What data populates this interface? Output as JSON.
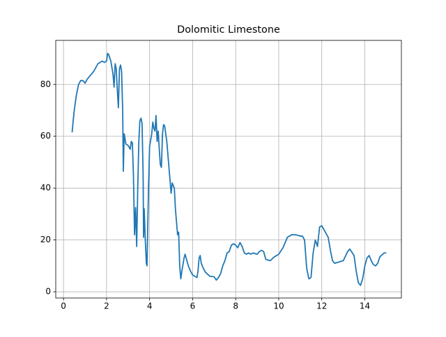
{
  "chart_data": {
    "type": "line",
    "title": "Dolomitic Limestone",
    "color": "#1f77b4",
    "grid": true,
    "x": [
      0.4,
      0.45,
      0.5,
      0.6,
      0.7,
      0.8,
      0.9,
      1.0,
      1.1,
      1.2,
      1.4,
      1.6,
      1.8,
      1.9,
      2.0,
      2.05,
      2.1,
      2.2,
      2.3,
      2.35,
      2.4,
      2.45,
      2.5,
      2.55,
      2.6,
      2.65,
      2.7,
      2.75,
      2.78,
      2.82,
      2.9,
      3.0,
      3.1,
      3.15,
      3.2,
      3.25,
      3.3,
      3.35,
      3.4,
      3.45,
      3.5,
      3.55,
      3.6,
      3.65,
      3.7,
      3.72,
      3.75,
      3.8,
      3.85,
      3.88,
      3.95,
      4.0,
      4.1,
      4.15,
      4.2,
      4.25,
      4.3,
      4.35,
      4.4,
      4.45,
      4.5,
      4.55,
      4.6,
      4.65,
      4.7,
      4.8,
      4.9,
      4.95,
      5.0,
      5.05,
      5.15,
      5.2,
      5.3,
      5.35,
      5.4,
      5.45,
      5.5,
      5.6,
      5.65,
      5.7,
      5.8,
      5.9,
      6.0,
      6.1,
      6.2,
      6.25,
      6.3,
      6.35,
      6.4,
      6.5,
      6.6,
      6.8,
      7.0,
      7.1,
      7.2,
      7.3,
      7.4,
      7.5,
      7.6,
      7.7,
      7.8,
      7.9,
      8.0,
      8.1,
      8.2,
      8.3,
      8.4,
      8.5,
      8.6,
      8.7,
      8.8,
      9.0,
      9.1,
      9.2,
      9.3,
      9.4,
      9.6,
      9.8,
      10.0,
      10.2,
      10.4,
      10.6,
      10.8,
      11.0,
      11.1,
      11.2,
      11.3,
      11.4,
      11.5,
      11.6,
      11.7,
      11.8,
      11.9,
      12.0,
      12.1,
      12.3,
      12.4,
      12.5,
      12.6,
      12.8,
      13.0,
      13.2,
      13.3,
      13.5,
      13.6,
      13.7,
      13.8,
      13.9,
      14.0,
      14.1,
      14.2,
      14.3,
      14.4,
      14.5,
      14.6,
      14.7,
      14.9,
      15.0
    ],
    "values": [
      61.5,
      66,
      70,
      76,
      80,
      81.5,
      81.5,
      80.5,
      82,
      83,
      85,
      88,
      89,
      88.5,
      89,
      92,
      91.5,
      89,
      84,
      79,
      88,
      86,
      78,
      71,
      86,
      87.5,
      85,
      70,
      46.5,
      61,
      57,
      56.5,
      55,
      58,
      57.5,
      45,
      22,
      32.5,
      17.5,
      40,
      58,
      66,
      67,
      65,
      45,
      21,
      32,
      20,
      11,
      10,
      40,
      56,
      61,
      65.5,
      63,
      62,
      68,
      58,
      62,
      55,
      49,
      48,
      61,
      64.5,
      64,
      58,
      48,
      43,
      38,
      42,
      40,
      32,
      22,
      23,
      10,
      5,
      8,
      13,
      14.5,
      13,
      10,
      8,
      6.5,
      6,
      5.5,
      8,
      13,
      14,
      11,
      9,
      7.5,
      6,
      5.8,
      4.5,
      5.5,
      7,
      10,
      12,
      15,
      15.5,
      18,
      18.5,
      18,
      17,
      19,
      17.5,
      15,
      14.5,
      15,
      14.5,
      15,
      14.5,
      15.5,
      16,
      15.5,
      12.5,
      12,
      13.5,
      14.5,
      17,
      21,
      22,
      22,
      21.5,
      21.5,
      20,
      9,
      5,
      5.5,
      15,
      20,
      17.5,
      25,
      25.5,
      24,
      21,
      16,
      12,
      11,
      11.5,
      12,
      15.5,
      16.5,
      14,
      8,
      3.5,
      2.5,
      5,
      10,
      13,
      14,
      12,
      10.5,
      10,
      11,
      13.5,
      15,
      15
    ],
    "xlim": [
      -0.36,
      15.7
    ],
    "ylim": [
      -2.4,
      97
    ],
    "xticks": [
      0,
      2,
      4,
      6,
      8,
      10,
      12,
      14
    ],
    "yticks": [
      0,
      20,
      40,
      60,
      80
    ]
  }
}
